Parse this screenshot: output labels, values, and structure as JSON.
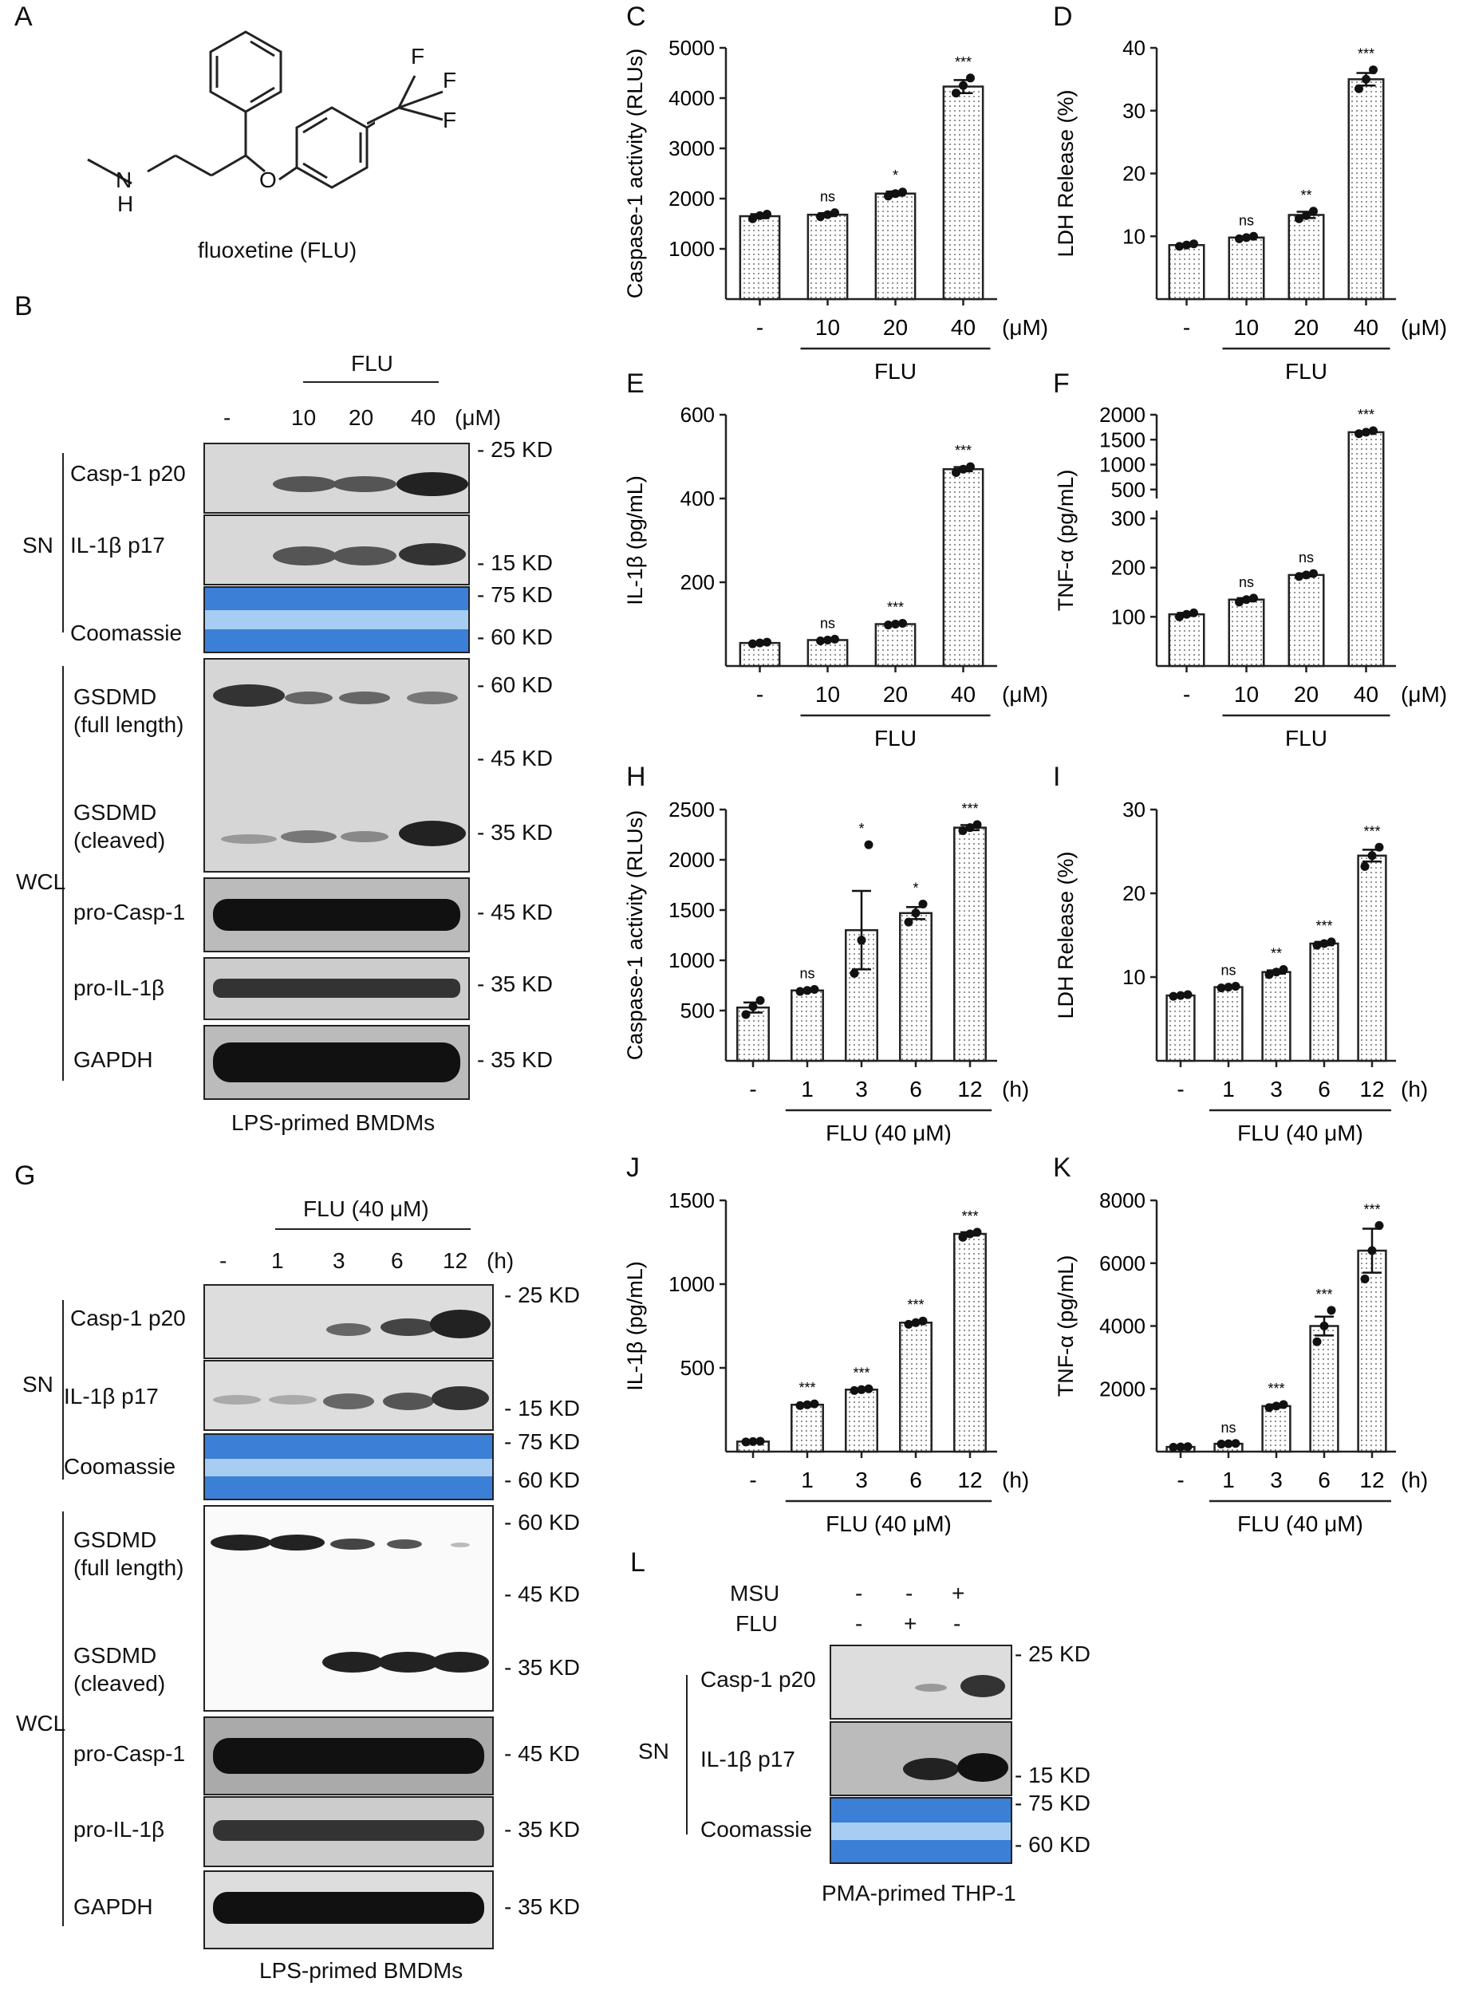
{
  "panels": {
    "A": "A",
    "B": "B",
    "C": "C",
    "D": "D",
    "E": "E",
    "F": "F",
    "G": "G",
    "H": "H",
    "I": "I",
    "J": "J",
    "K": "K",
    "L": "L"
  },
  "structure": {
    "name": "fluoxetine (FLU)",
    "atoms": {
      "F1": "F",
      "F2": "F",
      "F3": "F",
      "N": "N",
      "H": "H",
      "O": "O"
    }
  },
  "blotB": {
    "drug": "FLU",
    "lanes": [
      "-",
      "10",
      "20",
      "40"
    ],
    "unit": "(μM)",
    "groups": {
      "sn": "SN",
      "wcl": "WCL"
    },
    "rows": [
      "Casp-1 p20",
      "IL-1β p17",
      "Coomassie",
      "GSDMD",
      "(full length)",
      "GSDMD",
      "(cleaved)",
      "pro-Casp-1",
      "pro-IL-1β",
      "GAPDH"
    ],
    "markers": [
      "- 25 KD",
      "- 15 KD",
      "- 75 KD",
      "- 60 KD",
      "- 60 KD",
      "- 45 KD",
      "- 35 KD",
      "- 45 KD",
      "- 35 KD",
      "- 35 KD"
    ],
    "caption": "LPS-primed BMDMs"
  },
  "blotG": {
    "drug": "FLU (40 μM)",
    "lanes": [
      "-",
      "1",
      "3",
      "6",
      "12"
    ],
    "unit": "(h)",
    "groups": {
      "sn": "SN",
      "wcl": "WCL"
    },
    "rows": [
      "Casp-1 p20",
      "IL-1β p17",
      "Coomassie",
      "GSDMD",
      "(full length)",
      "GSDMD",
      "(cleaved)",
      "pro-Casp-1",
      "pro-IL-1β",
      "GAPDH"
    ],
    "markers": [
      "- 25 KD",
      "- 15 KD",
      "- 75 KD",
      "- 60 KD",
      "- 60 KD",
      "- 45 KD",
      "- 35 KD",
      "- 45 KD",
      "- 35 KD",
      "- 35 KD"
    ],
    "caption": "LPS-primed BMDMs"
  },
  "blotL": {
    "treatments": [
      {
        "name": "MSU",
        "values": [
          "-",
          "-",
          "+"
        ]
      },
      {
        "name": "FLU",
        "values": [
          "-",
          "+",
          "-"
        ]
      }
    ],
    "group": "SN",
    "rows": [
      "Casp-1 p20",
      "IL-1β p17",
      "Coomassie"
    ],
    "markers": [
      "- 25 KD",
      "- 15 KD",
      "- 75 KD",
      "- 60 KD"
    ],
    "caption": "PMA-primed THP-1"
  },
  "chart_data": [
    {
      "panel": "C",
      "type": "bar",
      "ylabel": "Caspase-1 activity (RLUs)",
      "categories": [
        "-",
        "10",
        "20",
        "40"
      ],
      "unit": "(μM)",
      "group_label": "FLU",
      "values": [
        1650,
        1680,
        2100,
        4230
      ],
      "points": [
        [
          1600,
          1660,
          1690
        ],
        [
          1640,
          1680,
          1720
        ],
        [
          2050,
          2100,
          2130
        ],
        [
          4100,
          4250,
          4400
        ]
      ],
      "sem": [
        40,
        30,
        40,
        130
      ],
      "significance": [
        "",
        "ns",
        "*",
        "***"
      ],
      "ylim": [
        0,
        5000
      ],
      "yticks": [
        1000,
        2000,
        3000,
        4000,
        5000
      ]
    },
    {
      "panel": "D",
      "type": "bar",
      "ylabel": "LDH Release (%)",
      "categories": [
        "-",
        "10",
        "20",
        "40"
      ],
      "unit": "(μM)",
      "group_label": "FLU",
      "values": [
        8.6,
        9.8,
        13.4,
        35.0
      ],
      "points": [
        [
          8.4,
          8.6,
          8.8
        ],
        [
          9.6,
          9.8,
          10.0
        ],
        [
          12.8,
          13.3,
          14.0
        ],
        [
          33.5,
          35.0,
          36.5
        ]
      ],
      "sem": [
        0.2,
        0.2,
        0.5,
        1.0
      ],
      "significance": [
        "",
        "ns",
        "**",
        "***"
      ],
      "ylim": [
        0,
        40
      ],
      "yticks": [
        10,
        20,
        30,
        40
      ]
    },
    {
      "panel": "E",
      "type": "bar",
      "ylabel": "IL-1β (pg/mL)",
      "categories": [
        "-",
        "10",
        "20",
        "40"
      ],
      "unit": "(μM)",
      "group_label": "FLU",
      "values": [
        55,
        62,
        100,
        470
      ],
      "points": [
        [
          53,
          55,
          57
        ],
        [
          60,
          62,
          64
        ],
        [
          98,
          100,
          102
        ],
        [
          462,
          470,
          476
        ]
      ],
      "sem": [
        2,
        2,
        2,
        5
      ],
      "significance": [
        "",
        "ns",
        "***",
        "***"
      ],
      "ylim": [
        0,
        600
      ],
      "yticks": [
        200,
        400,
        600
      ]
    },
    {
      "panel": "F",
      "type": "bar",
      "ylabel": "TNF-α (pg/mL)",
      "broken_axis": true,
      "categories": [
        "-",
        "10",
        "20",
        "40"
      ],
      "unit": "(μM)",
      "group_label": "FLU",
      "values": [
        105,
        135,
        185,
        1650
      ],
      "points": [
        [
          100,
          105,
          108
        ],
        [
          130,
          135,
          138
        ],
        [
          182,
          185,
          188
        ],
        [
          1620,
          1650,
          1680
        ]
      ],
      "sem": [
        3,
        3,
        3,
        20
      ],
      "significance": [
        "",
        "ns",
        "ns",
        "***"
      ],
      "yticks_lower": [
        100,
        200,
        300
      ],
      "yticks_upper": [
        500,
        1000,
        1500,
        2000
      ]
    },
    {
      "panel": "H",
      "type": "bar",
      "ylabel": "Caspase-1 activity (RLUs)",
      "categories": [
        "-",
        "1",
        "3",
        "6",
        "12"
      ],
      "unit": "(h)",
      "group_label": "FLU (40 μM)",
      "values": [
        530,
        700,
        1300,
        1470,
        2320
      ],
      "points": [
        [
          460,
          540,
          600
        ],
        [
          690,
          700,
          710
        ],
        [
          870,
          1200,
          2150
        ],
        [
          1380,
          1470,
          1560
        ],
        [
          2290,
          2320,
          2350
        ]
      ],
      "sem": [
        50,
        5,
        390,
        60,
        25
      ],
      "significance": [
        "",
        "ns",
        "*",
        "*",
        "***"
      ],
      "ylim": [
        0,
        2500
      ],
      "yticks": [
        500,
        1000,
        1500,
        2000,
        2500
      ]
    },
    {
      "panel": "I",
      "type": "bar",
      "ylabel": "LDH Release (%)",
      "categories": [
        "-",
        "1",
        "3",
        "6",
        "12"
      ],
      "unit": "(h)",
      "group_label": "FLU (40 μM)",
      "values": [
        7.8,
        8.8,
        10.6,
        14.0,
        24.5
      ],
      "points": [
        [
          7.7,
          7.8,
          7.9
        ],
        [
          8.7,
          8.8,
          8.9
        ],
        [
          10.3,
          10.6,
          10.9
        ],
        [
          13.8,
          14.0,
          14.2
        ],
        [
          23.2,
          24.5,
          25.5
        ]
      ],
      "sem": [
        0.1,
        0.1,
        0.2,
        0.2,
        0.7
      ],
      "significance": [
        "",
        "ns",
        "**",
        "***",
        "***"
      ],
      "ylim": [
        0,
        30
      ],
      "yticks": [
        10,
        20,
        30
      ]
    },
    {
      "panel": "J",
      "type": "bar",
      "ylabel": "IL-1β (pg/mL)",
      "categories": [
        "-",
        "1",
        "3",
        "6",
        "12"
      ],
      "unit": "(h)",
      "group_label": "FLU (40 μM)",
      "values": [
        60,
        280,
        370,
        770,
        1300
      ],
      "points": [
        [
          58,
          60,
          62
        ],
        [
          275,
          280,
          285
        ],
        [
          365,
          370,
          375
        ],
        [
          760,
          770,
          780
        ],
        [
          1280,
          1300,
          1310
        ]
      ],
      "sem": [
        2,
        3,
        3,
        5,
        10
      ],
      "significance": [
        "",
        "***",
        "***",
        "***",
        "***"
      ],
      "ylim": [
        0,
        1500
      ],
      "yticks": [
        500,
        1000,
        1500
      ]
    },
    {
      "panel": "K",
      "type": "bar",
      "ylabel": "TNF-α (pg/mL)",
      "categories": [
        "-",
        "1",
        "3",
        "6",
        "12"
      ],
      "unit": "(h)",
      "group_label": "FLU (40 μM)",
      "values": [
        150,
        250,
        1450,
        4000,
        6400
      ],
      "points": [
        [
          140,
          150,
          160
        ],
        [
          240,
          250,
          260
        ],
        [
          1400,
          1450,
          1500
        ],
        [
          3500,
          4000,
          4500
        ],
        [
          5500,
          6400,
          7200
        ]
      ],
      "sem": [
        10,
        10,
        50,
        300,
        700
      ],
      "significance": [
        "",
        "ns",
        "***",
        "***",
        "***"
      ],
      "ylim": [
        0,
        8000
      ],
      "yticks": [
        2000,
        4000,
        6000,
        8000
      ]
    }
  ]
}
